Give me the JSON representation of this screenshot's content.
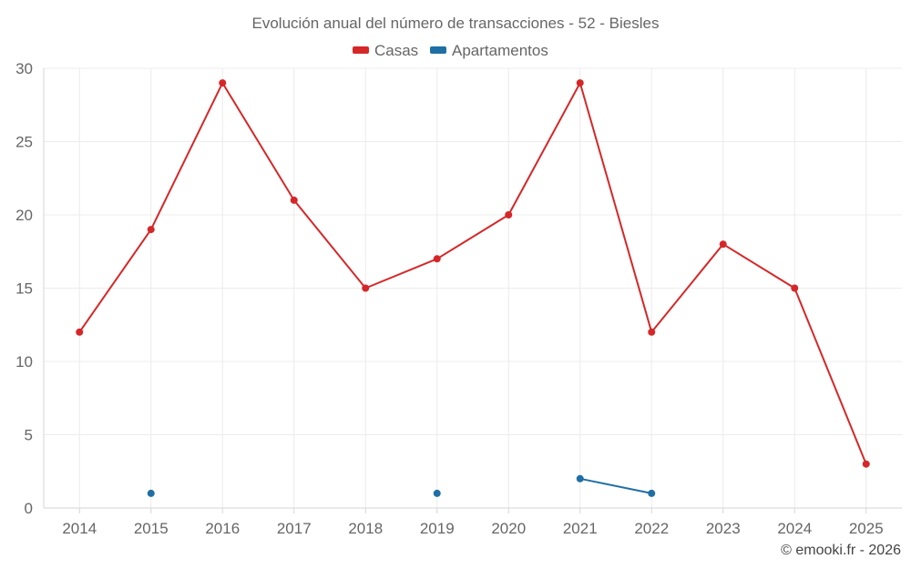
{
  "chart_data": {
    "type": "line",
    "title": "Evolución anual del número de transacciones - 52 - Biesles",
    "categories": [
      "2014",
      "2015",
      "2016",
      "2017",
      "2018",
      "2019",
      "2020",
      "2021",
      "2022",
      "2023",
      "2024",
      "2025"
    ],
    "ylim": [
      0,
      30
    ],
    "yticks": [
      0,
      5,
      10,
      15,
      20,
      25,
      30
    ],
    "grid": true,
    "legend_position": "top-center",
    "series": [
      {
        "name": "Casas",
        "color": "#d62728",
        "values": [
          12,
          19,
          29,
          21,
          15,
          17,
          20,
          29,
          12,
          18,
          15,
          3
        ]
      },
      {
        "name": "Apartamentos",
        "color": "#1f6fa5",
        "values": [
          null,
          1,
          null,
          null,
          null,
          1,
          null,
          2,
          1,
          null,
          null,
          null
        ]
      }
    ]
  },
  "credit": "© emooki.fr - 2026"
}
